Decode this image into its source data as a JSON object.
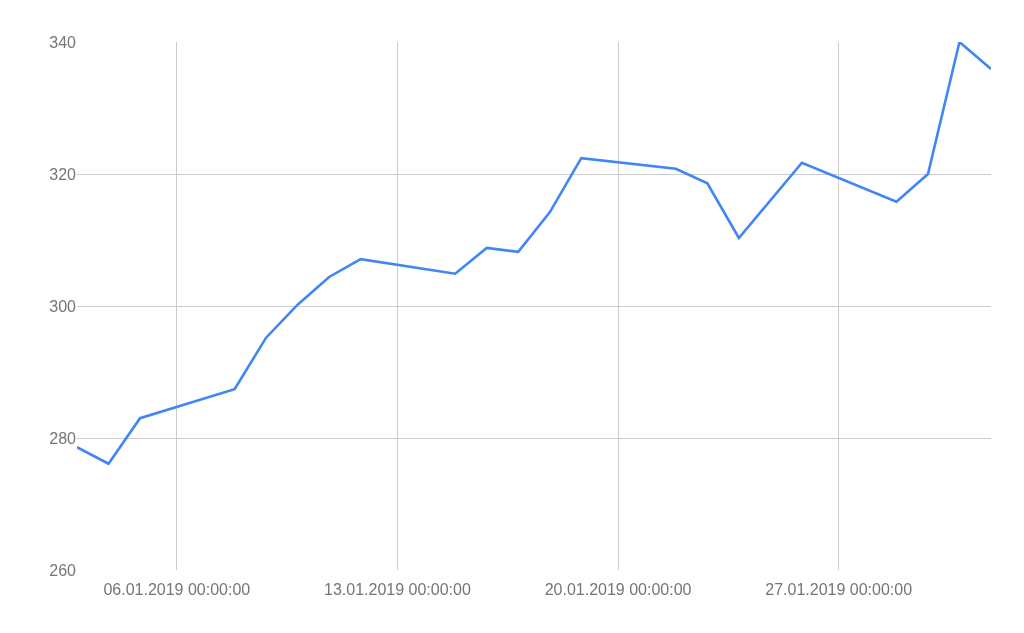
{
  "chart_data": {
    "type": "line",
    "x": [
      "2019-01-02T20:00",
      "2019-01-03T20:00",
      "2019-01-04T20:00",
      "2019-01-07T20:00",
      "2019-01-08T20:00",
      "2019-01-09T20:00",
      "2019-01-10T20:00",
      "2019-01-11T20:00",
      "2019-01-14T20:00",
      "2019-01-15T20:00",
      "2019-01-16T20:00",
      "2019-01-17T20:00",
      "2019-01-18T20:00",
      "2019-01-21T20:00",
      "2019-01-22T20:00",
      "2019-01-23T20:00",
      "2019-01-25T20:00",
      "2019-01-28T20:00",
      "2019-01-29T20:00",
      "2019-01-30T20:00",
      "2019-01-31T20:00"
    ],
    "series": [
      {
        "color": "#4285f4",
        "values": [
          278.6,
          276.1,
          283.0,
          287.4,
          295.2,
          300.2,
          304.4,
          307.1,
          304.9,
          308.8,
          308.2,
          314.2,
          322.4,
          320.8,
          318.6,
          310.3,
          321.7,
          315.8,
          320.0,
          340.0,
          335.9
        ]
      }
    ],
    "xlim": [
      "2019-01-02T20:00",
      "2019-01-31T20:00"
    ],
    "xticks": [
      {
        "value": "2019-01-06",
        "label": "06.01.2019 00:00:00"
      },
      {
        "value": "2019-01-13",
        "label": "13.01.2019 00:00:00"
      },
      {
        "value": "2019-01-20",
        "label": "20.01.2019 00:00:00"
      },
      {
        "value": "2019-01-27",
        "label": "27.01.2019 00:00:00"
      }
    ],
    "ylim": [
      260,
      340
    ],
    "yticks": [
      260,
      280,
      300,
      320,
      340
    ],
    "grid": true,
    "marker": "none",
    "line_style": "solid"
  }
}
